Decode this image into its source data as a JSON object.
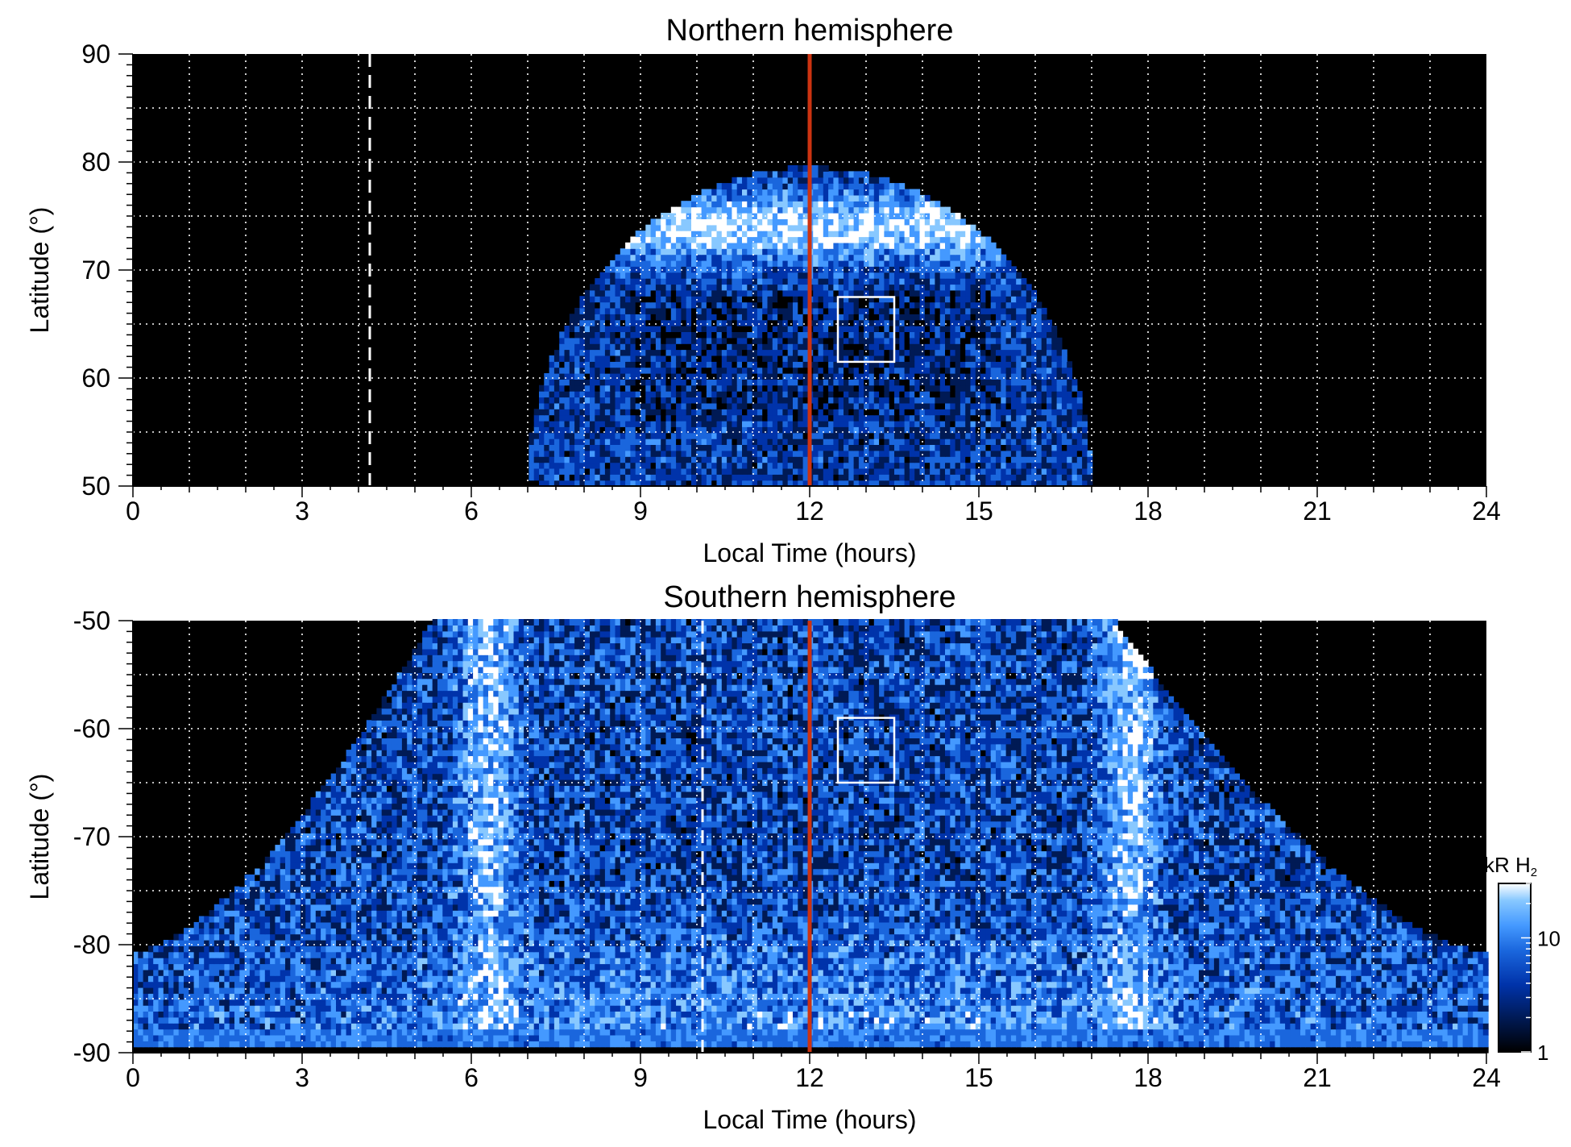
{
  "colors": {
    "background": "#000000",
    "noon_line": "#cc3311",
    "grid": "#ffffff",
    "colormap": [
      "#000000",
      "#001a55",
      "#0033aa",
      "#1a66dd",
      "#4499ff",
      "#88c8ff",
      "#ffffff"
    ]
  },
  "chart_data": [
    {
      "type": "heatmap",
      "id": "north",
      "title": "Northern hemisphere",
      "xlabel": "Local Time (hours)",
      "ylabel": "Latitude (°)",
      "xlim": [
        0,
        24
      ],
      "ylim": [
        50,
        90
      ],
      "xticks": [
        0,
        3,
        6,
        9,
        12,
        15,
        18,
        21,
        24
      ],
      "yticks": [
        50,
        60,
        70,
        80,
        90
      ],
      "grid_x_step_hours": 1,
      "grid_y_step_deg": 5,
      "coverage": {
        "center_hours": 12.0,
        "half_width_hours_at_edge": 5.0,
        "max_abs_latitude": 79.5
      },
      "auroral_oval": {
        "latitude": 74,
        "spans_hours": [
          8.5,
          16.0
        ],
        "peak_kR": 25
      },
      "dashed_marker_hours": 4.2,
      "noon_line_hours": 12,
      "box": {
        "lt": [
          12.5,
          13.5
        ],
        "lat": [
          61.5,
          67.5
        ]
      }
    },
    {
      "type": "heatmap",
      "id": "south",
      "title": "Southern hemisphere",
      "xlabel": "Local Time (hours)",
      "ylabel": "Latitude (°)",
      "xlim": [
        0,
        24
      ],
      "ylim": [
        -90,
        -50
      ],
      "xticks": [
        0,
        3,
        6,
        9,
        12,
        15,
        18,
        21,
        24
      ],
      "yticks": [
        -90,
        -80,
        -70,
        -60,
        -50
      ],
      "grid_x_step_hours": 1,
      "grid_y_step_deg": 5,
      "coverage": {
        "full_coverage_below": -80.7,
        "edge_at_minus_50_hours": [
          5.3,
          17.4
        ]
      },
      "bright_bands_hours": [
        6.3,
        17.7
      ],
      "dashed_marker_hours": 10.1,
      "noon_line_hours": 12,
      "box": {
        "lt": [
          12.5,
          13.5
        ],
        "lat": [
          -65.0,
          -59.0
        ]
      }
    }
  ],
  "colorbar": {
    "label": "kR H",
    "label_sub": "2",
    "scale": "log",
    "range_kR": [
      1,
      30
    ],
    "ticks": [
      1,
      10
    ]
  }
}
